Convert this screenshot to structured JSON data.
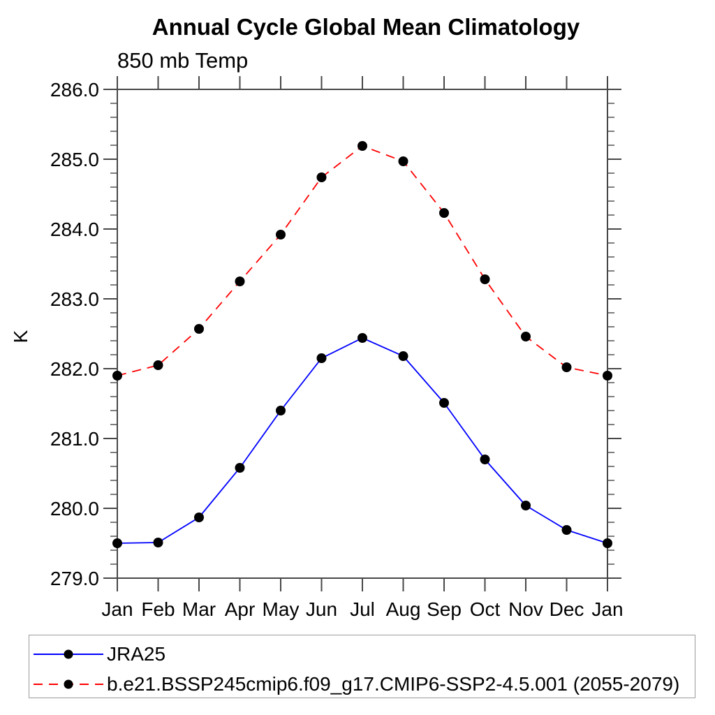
{
  "accent_colors": {
    "series1": "#0000ff",
    "series2": "#ff0000",
    "marker": "#000000",
    "axis": "#474747",
    "text": "#000000",
    "legend_border": "#9a9a9a"
  },
  "chart_data": {
    "type": "line",
    "title": "Annual Cycle Global Mean Climatology",
    "subtitle": "850 mb Temp",
    "xlabel": "",
    "ylabel": "K",
    "categories": [
      "Jan",
      "Feb",
      "Mar",
      "Apr",
      "May",
      "Jun",
      "Jul",
      "Aug",
      "Sep",
      "Oct",
      "Nov",
      "Dec",
      "Jan"
    ],
    "ylim": [
      279.0,
      286.0
    ],
    "ytick_step": 1.0,
    "yminor_step": 0.2,
    "grid": false,
    "legend_position": "bottom",
    "series": [
      {
        "name": "JRA25",
        "color": "#0000ff",
        "line_style": "solid",
        "marker": "circle",
        "marker_color": "#000000",
        "values": [
          279.5,
          279.51,
          279.87,
          280.58,
          281.4,
          282.15,
          282.44,
          282.18,
          281.51,
          280.7,
          280.04,
          279.69,
          279.5
        ]
      },
      {
        "name": "b.e21.BSSP245cmip6.f09_g17.CMIP6-SSP2-4.5.001 (2055-2079)",
        "color": "#ff0000",
        "line_style": "dashed",
        "marker": "circle",
        "marker_color": "#000000",
        "values": [
          281.9,
          282.05,
          282.57,
          283.25,
          283.92,
          284.74,
          285.19,
          284.97,
          284.23,
          283.28,
          282.46,
          282.02,
          281.9
        ]
      }
    ]
  }
}
